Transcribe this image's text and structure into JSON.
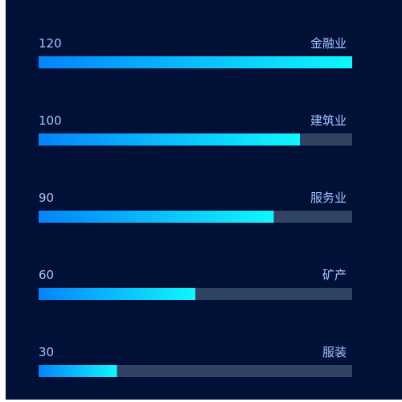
{
  "chart_data": {
    "type": "bar",
    "orientation": "horizontal",
    "categories": [
      "金融业",
      "建筑业",
      "服务业",
      "矿产",
      "服装"
    ],
    "values": [
      120,
      100,
      90,
      60,
      30
    ],
    "xlim": [
      0,
      120
    ],
    "grid": false,
    "legend": "none",
    "colors": {
      "background": "#001036",
      "track": "#314363",
      "bar_start": "#0484fc",
      "bar_end": "#0ff7fd",
      "text": "#a6c4ff"
    }
  }
}
